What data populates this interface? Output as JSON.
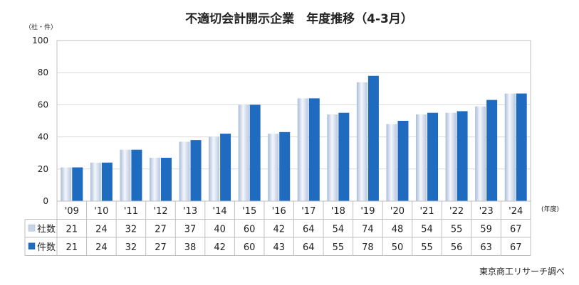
{
  "chart_data": {
    "type": "bar",
    "title": "不適切会計開示企業　年度推移（4-3月）",
    "yunit": "（社・件）",
    "xunit": "(年度)",
    "ylim": [
      0,
      100
    ],
    "yticks": [
      "0",
      "20",
      "40",
      "60",
      "80",
      "100"
    ],
    "grid": true,
    "categories": [
      "'09",
      "'10",
      "'11",
      "'12",
      "'13",
      "'14",
      "'15",
      "'16",
      "'17",
      "'18",
      "'19",
      "'20",
      "'21",
      "'22",
      "'23",
      "'24"
    ],
    "series": [
      {
        "name": "社数",
        "color": "#c8d4e8",
        "values": [
          21,
          24,
          32,
          27,
          37,
          40,
          60,
          42,
          64,
          54,
          74,
          48,
          54,
          55,
          59,
          67
        ]
      },
      {
        "name": "件数",
        "color": "#1f6bbf",
        "values": [
          21,
          24,
          32,
          27,
          38,
          42,
          60,
          43,
          64,
          55,
          78,
          50,
          55,
          56,
          63,
          67
        ]
      }
    ]
  },
  "source": "東京商工リサーチ調べ"
}
